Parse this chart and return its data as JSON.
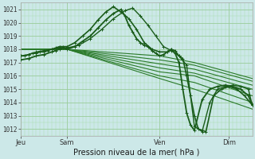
{
  "title": "Pression niveau de la mer( hPa )",
  "bg_color": "#cce8e8",
  "plot_bg_color": "#cce8e8",
  "grid_color_major": "#99cc99",
  "grid_color_minor": "#aaddaa",
  "yticks": [
    1012,
    1013,
    1014,
    1015,
    1016,
    1017,
    1018,
    1019,
    1020,
    1021
  ],
  "ylim": [
    1011.5,
    1021.5
  ],
  "xlim": [
    0,
    120
  ],
  "xtick_positions": [
    0,
    24,
    72,
    108
  ],
  "xtick_labels": [
    "Jeu",
    "Sam",
    "Ven",
    "Dim"
  ],
  "lines": [
    {
      "x": [
        0,
        2,
        4,
        6,
        8,
        10,
        12,
        14,
        16,
        18,
        20,
        22,
        24,
        28,
        32,
        36,
        40,
        44,
        48,
        52,
        56,
        60,
        64,
        68,
        72,
        76,
        78,
        80,
        82,
        84,
        86,
        88,
        90,
        92,
        96,
        100,
        104,
        108,
        112,
        116,
        120
      ],
      "y": [
        1017.5,
        1017.5,
        1017.6,
        1017.7,
        1017.7,
        1017.8,
        1017.8,
        1017.9,
        1018.0,
        1018.1,
        1018.2,
        1018.2,
        1018.2,
        1018.5,
        1019.0,
        1019.5,
        1020.2,
        1020.8,
        1021.2,
        1020.8,
        1020.3,
        1019.5,
        1018.5,
        1018.0,
        1017.8,
        1017.8,
        1018.0,
        1017.9,
        1017.5,
        1017.3,
        1016.0,
        1014.5,
        1013.0,
        1012.0,
        1011.8,
        1014.5,
        1015.0,
        1015.2,
        1015.0,
        1014.5,
        1013.8
      ],
      "color": "#1a5c1a",
      "lw": 1.2,
      "marker": "+"
    },
    {
      "x": [
        0,
        4,
        8,
        12,
        16,
        20,
        24,
        30,
        36,
        42,
        48,
        54,
        58,
        62,
        66,
        70,
        74,
        78,
        82,
        86,
        90,
        94,
        98,
        102,
        106,
        110,
        114,
        118,
        120
      ],
      "y": [
        1017.5,
        1017.6,
        1017.8,
        1017.9,
        1018.0,
        1018.1,
        1018.1,
        1018.3,
        1018.8,
        1019.5,
        1020.3,
        1020.9,
        1021.1,
        1020.5,
        1019.8,
        1019.0,
        1018.2,
        1017.9,
        1017.5,
        1016.8,
        1012.2,
        1011.8,
        1014.0,
        1015.0,
        1015.2,
        1015.3,
        1015.2,
        1015.0,
        1013.8
      ],
      "color": "#1a5c1a",
      "lw": 1.0,
      "marker": "+"
    },
    {
      "x": [
        0,
        24,
        72,
        90,
        120
      ],
      "y": [
        1018.0,
        1018.0,
        1015.8,
        1015.0,
        1013.5
      ],
      "color": "#2a7a2a",
      "lw": 0.8,
      "marker": null
    },
    {
      "x": [
        0,
        24,
        72,
        90,
        120
      ],
      "y": [
        1018.0,
        1018.0,
        1016.0,
        1015.5,
        1014.0
      ],
      "color": "#2a7a2a",
      "lw": 0.8,
      "marker": null
    },
    {
      "x": [
        0,
        24,
        72,
        90,
        120
      ],
      "y": [
        1018.0,
        1018.0,
        1016.3,
        1016.0,
        1014.5
      ],
      "color": "#2a7a2a",
      "lw": 0.8,
      "marker": null
    },
    {
      "x": [
        0,
        24,
        72,
        90,
        120
      ],
      "y": [
        1018.0,
        1018.0,
        1016.6,
        1016.2,
        1015.0
      ],
      "color": "#2a7a2a",
      "lw": 0.8,
      "marker": null
    },
    {
      "x": [
        0,
        24,
        72,
        90,
        120
      ],
      "y": [
        1018.0,
        1018.0,
        1016.9,
        1016.5,
        1015.3
      ],
      "color": "#2a7a2a",
      "lw": 0.8,
      "marker": null
    },
    {
      "x": [
        0,
        24,
        72,
        90,
        120
      ],
      "y": [
        1018.0,
        1018.0,
        1017.2,
        1016.8,
        1015.6
      ],
      "color": "#2a7a2a",
      "lw": 0.8,
      "marker": null
    },
    {
      "x": [
        0,
        24,
        72,
        90,
        120
      ],
      "y": [
        1018.0,
        1018.0,
        1017.5,
        1017.0,
        1015.8
      ],
      "color": "#2a7a2a",
      "lw": 0.8,
      "marker": null
    },
    {
      "x": [
        0,
        4,
        8,
        12,
        16,
        18,
        20,
        22,
        24,
        28,
        32,
        36,
        40,
        44,
        48,
        52,
        54,
        56,
        58,
        60,
        62,
        64,
        66,
        68,
        70,
        72,
        74,
        76,
        78,
        80,
        82,
        84,
        86,
        88,
        90,
        94,
        98,
        102,
        106,
        110,
        114,
        118,
        120
      ],
      "y": [
        1017.2,
        1017.3,
        1017.5,
        1017.6,
        1017.8,
        1017.9,
        1018.0,
        1018.1,
        1018.0,
        1018.2,
        1018.6,
        1019.0,
        1019.6,
        1020.2,
        1020.7,
        1021.0,
        1020.5,
        1019.8,
        1019.3,
        1018.8,
        1018.5,
        1018.3,
        1018.2,
        1017.9,
        1017.7,
        1017.5,
        1017.6,
        1017.8,
        1018.0,
        1017.7,
        1017.0,
        1015.0,
        1013.2,
        1012.3,
        1011.9,
        1014.2,
        1015.0,
        1015.2,
        1015.3,
        1015.2,
        1015.0,
        1014.5,
        1013.8
      ],
      "color": "#1a5c1a",
      "lw": 1.3,
      "marker": "+"
    }
  ]
}
